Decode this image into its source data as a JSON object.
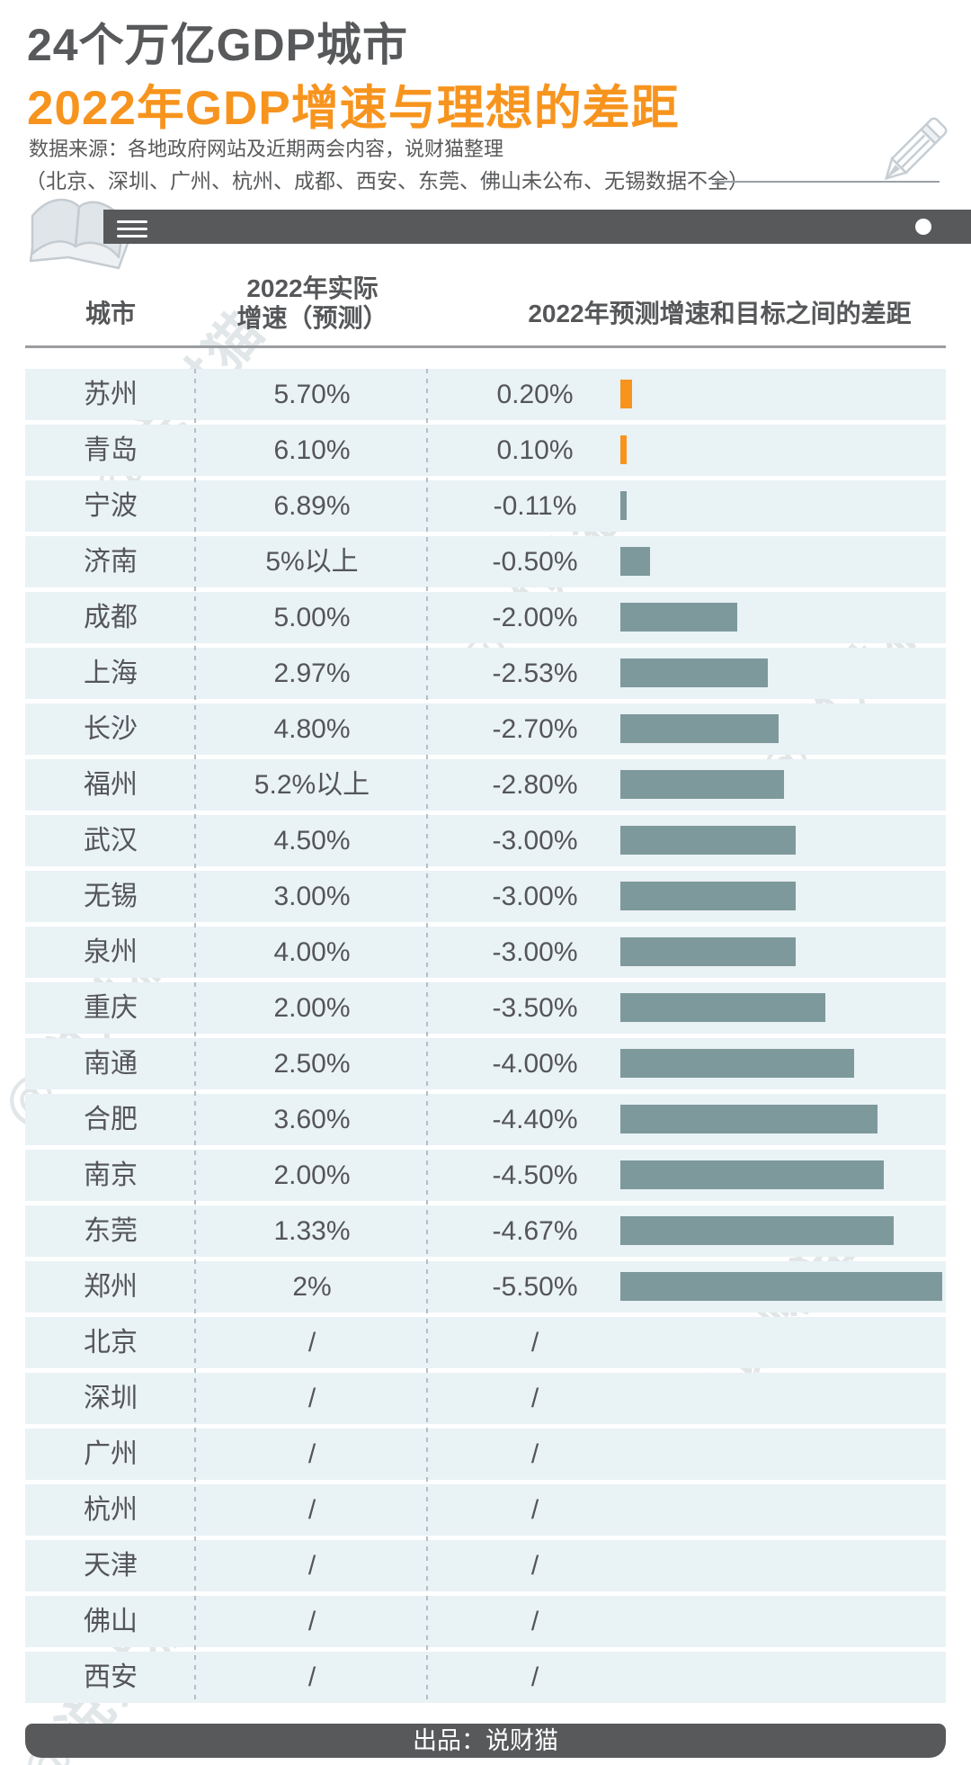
{
  "header": {
    "title_line1": "24个万亿GDP城市",
    "title_line2": "2022年GDP增速与理想的差距",
    "source": "数据来源：各地政府网站及近期两会内容，说财猫整理",
    "note": "（北京、深圳、广州、杭州、成都、西安、东莞、佛山未公布、无锡数据不全）"
  },
  "table_header": {
    "col_city": "城市",
    "col_actual_line1": "2022年实际",
    "col_actual_line2": "增速（预测）",
    "col_gap": "2022年预测增速和目标之间的差距"
  },
  "footer": {
    "credit": "出品：说财猫"
  },
  "watermark_text": "@说财猫",
  "colors": {
    "accent_orange": "#F7941E",
    "bar_teal": "#7D999C",
    "dark_gray": "#58595B",
    "row_bg": "#E9F2F5"
  },
  "chart_data": {
    "type": "bar",
    "title": "24个万亿GDP城市 2022年GDP增速与理想的差距",
    "categories": [
      "苏州",
      "青岛",
      "宁波",
      "济南",
      "成都",
      "上海",
      "长沙",
      "福州",
      "武汉",
      "无锡",
      "泉州",
      "重庆",
      "南通",
      "合肥",
      "南京",
      "东莞",
      "郑州",
      "北京",
      "深圳",
      "广州",
      "杭州",
      "天津",
      "佛山",
      "西安"
    ],
    "series": [
      {
        "name": "2022年实际增速（预测）",
        "values": [
          "5.70%",
          "6.10%",
          "6.89%",
          "5%以上",
          "5.00%",
          "2.97%",
          "4.80%",
          "5.2%以上",
          "4.50%",
          "3.00%",
          "4.00%",
          "2.00%",
          "2.50%",
          "3.60%",
          "2.00%",
          "1.33%",
          "2%",
          "/",
          "/",
          "/",
          "/",
          "/",
          "/",
          "/"
        ]
      },
      {
        "name": "2022年预测增速和目标之间的差距",
        "values": [
          0.2,
          0.1,
          -0.11,
          -0.5,
          -2.0,
          -2.53,
          -2.7,
          -2.8,
          -3.0,
          -3.0,
          -3.0,
          -3.5,
          -4.0,
          -4.4,
          -4.5,
          -4.67,
          -5.5,
          null,
          null,
          null,
          null,
          null,
          null,
          null
        ]
      }
    ],
    "value_suffix": "%",
    "missing_marker": "/",
    "positive_color": "#F7941E",
    "negative_color": "#7D999C",
    "orientation": "horizontal",
    "legend_position": "none",
    "grid": false
  }
}
